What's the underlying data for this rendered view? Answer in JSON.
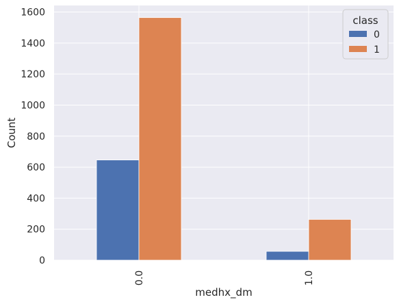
{
  "chart_data": {
    "type": "bar",
    "categories": [
      "0.0",
      "1.0"
    ],
    "series": [
      {
        "name": "0",
        "values": [
          646,
          57
        ]
      },
      {
        "name": "1",
        "values": [
          1564,
          263
        ]
      }
    ],
    "title": "",
    "xlabel": "medhx_dm",
    "ylabel": "Count",
    "ylim": [
      0,
      1642
    ],
    "yticks": [
      0,
      200,
      400,
      600,
      800,
      1000,
      1200,
      1400,
      1600
    ],
    "grid": true,
    "legend": {
      "title": "class",
      "placement": "top-right"
    },
    "colors": {
      "0": "#4c72b0",
      "1": "#dd8452",
      "plot_bg": "#eaeaf2",
      "grid": "#ffffff"
    }
  }
}
